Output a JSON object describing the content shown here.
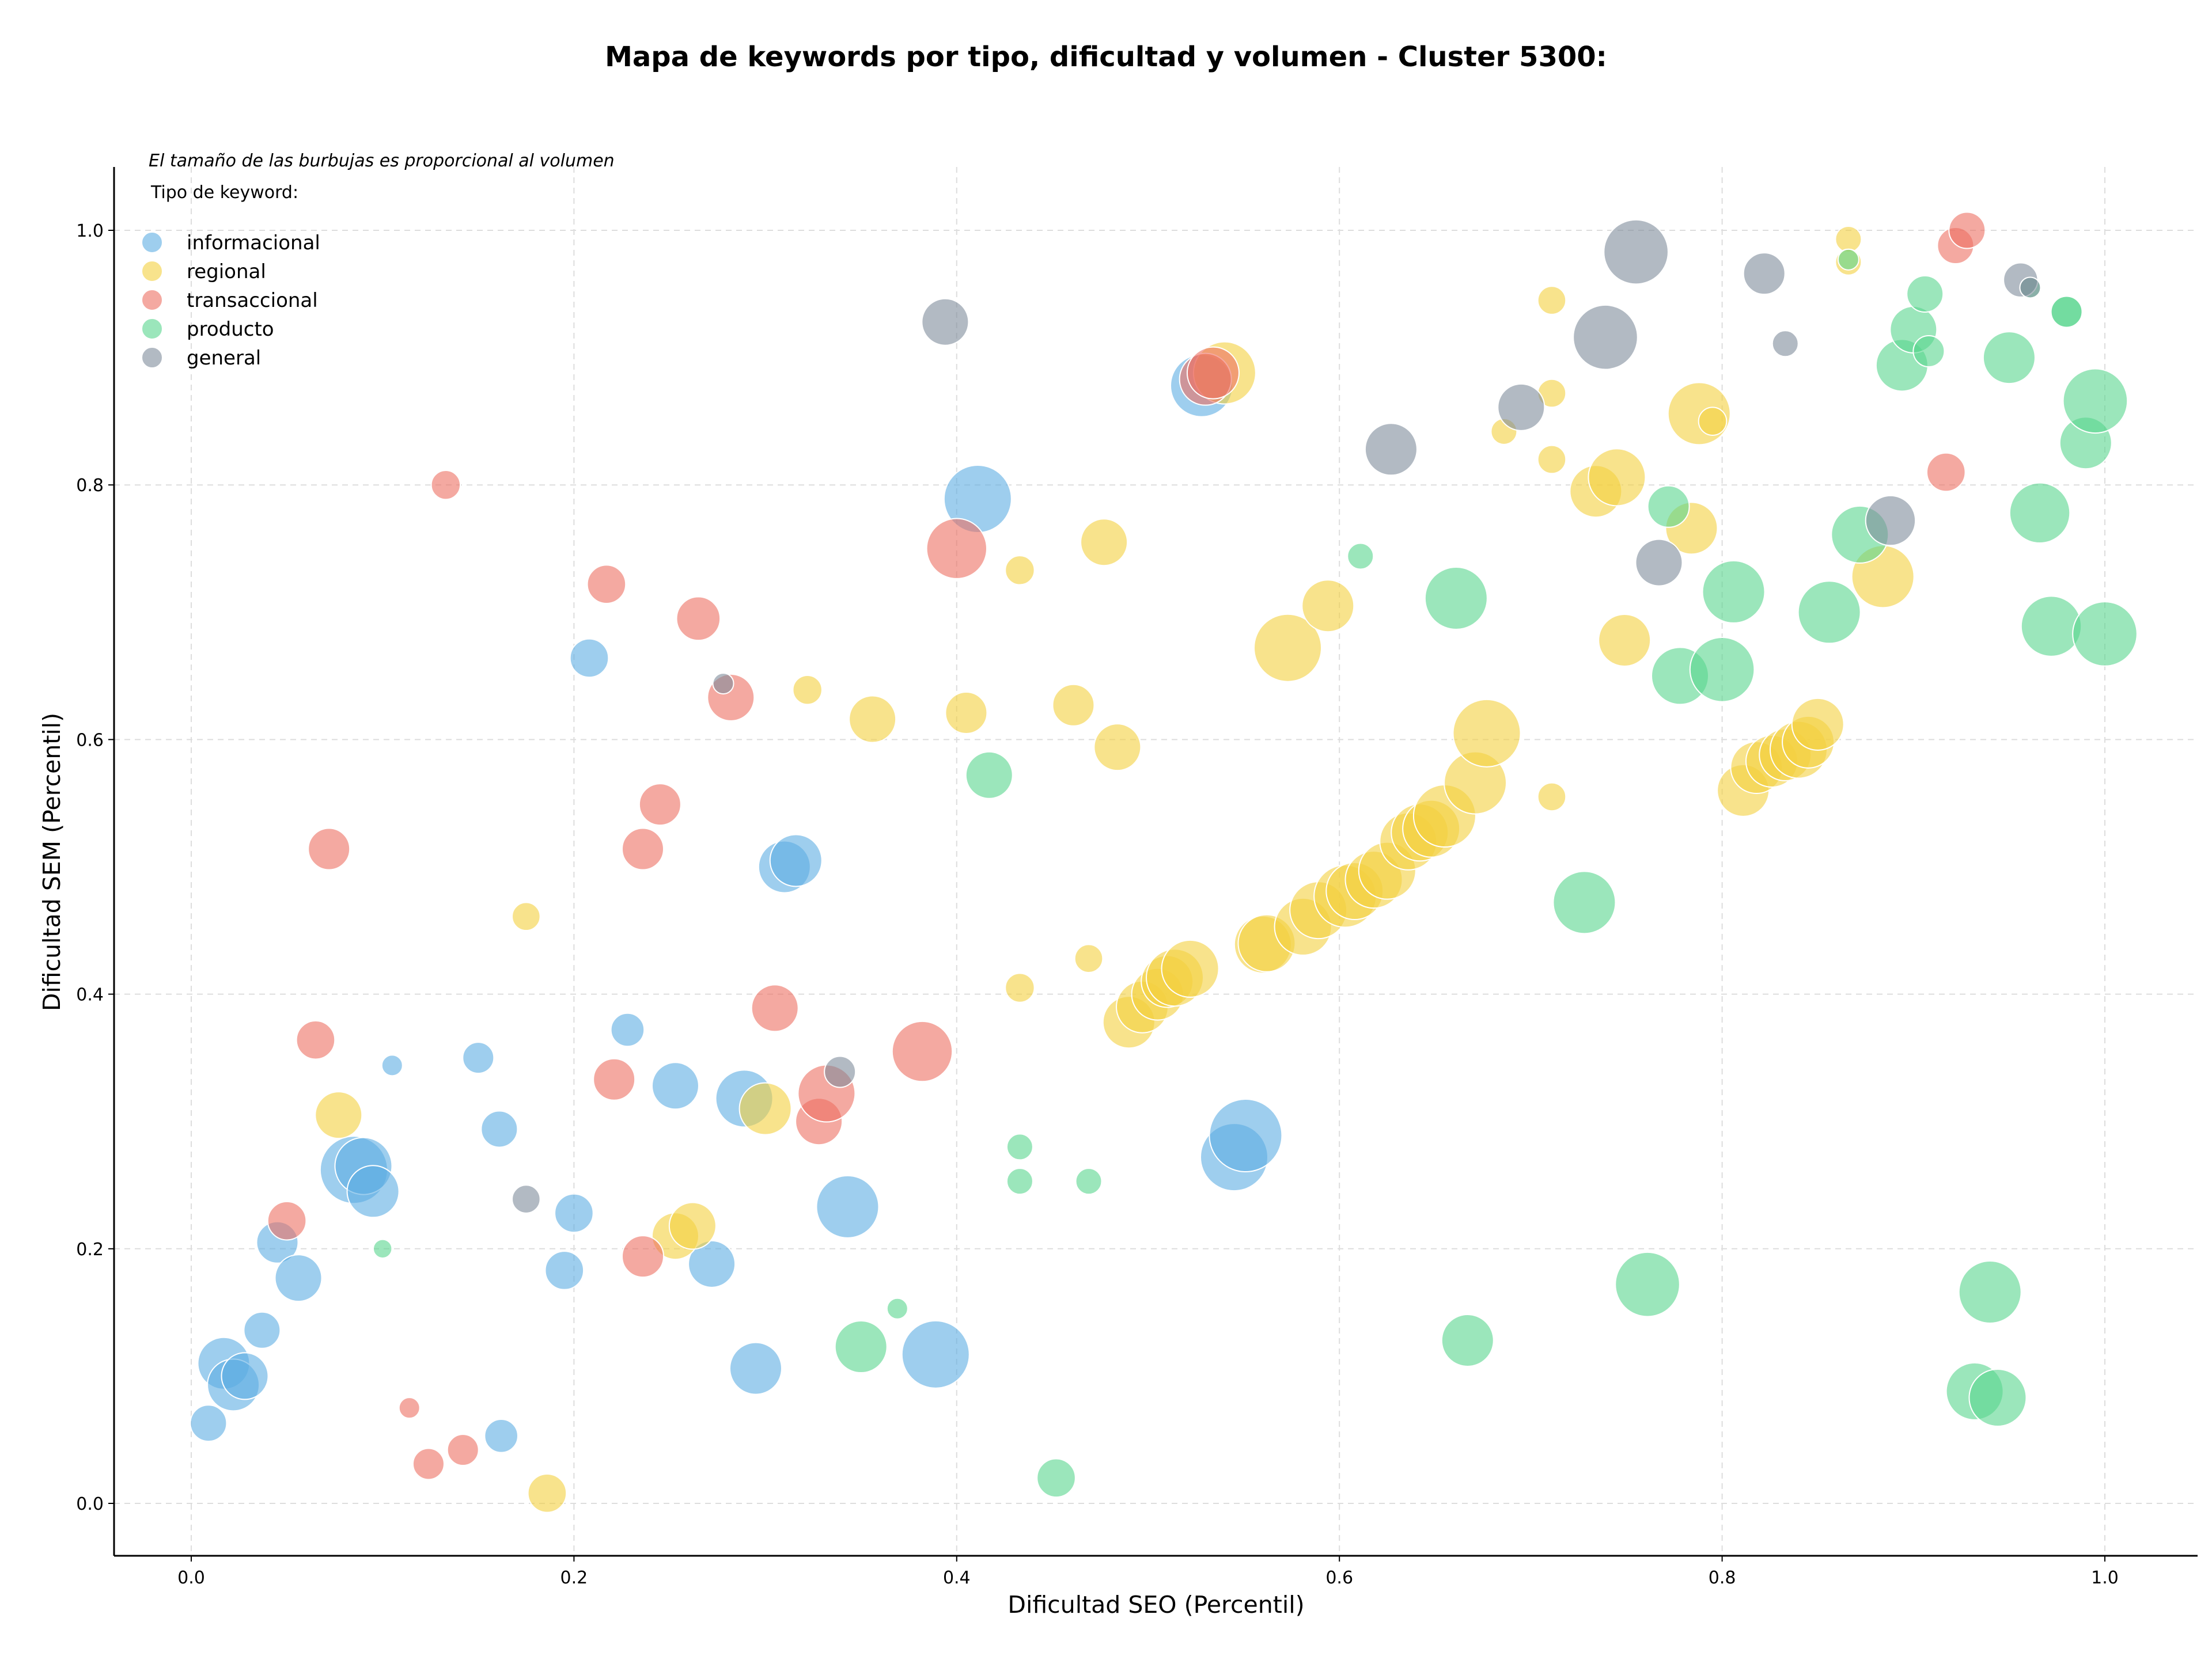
{
  "chart_data": {
    "type": "scatter",
    "title": "Mapa de keywords por tipo, dificultad y volumen - Cluster 5300:",
    "xlabel": "Dificultad SEO (Percentil)",
    "ylabel": "Dificultad SEM (Percentil)",
    "xlim": [
      -0.04,
      1.05
    ],
    "ylim": [
      -0.04,
      1.05
    ],
    "xticks": [
      0.0,
      0.2,
      0.4,
      0.6,
      0.8,
      1.0
    ],
    "yticks": [
      0.0,
      0.2,
      0.4,
      0.6,
      0.8,
      1.0
    ],
    "xtick_labels": [
      "0.0",
      "0.2",
      "0.4",
      "0.6",
      "0.8",
      "1.0"
    ],
    "ytick_labels": [
      "0.0",
      "0.2",
      "0.4",
      "0.6",
      "0.8",
      "1.0"
    ],
    "grid": true,
    "note": "El tamaño de las burbujas es proporcional al volumen",
    "legend_title": "Tipo de keyword:",
    "legend_position": "top-left",
    "series": [
      {
        "name": "informacional",
        "color": "#5DADE2",
        "points": [
          [
            0.009,
            0.063,
            0.35
          ],
          [
            0.017,
            0.11,
            0.5
          ],
          [
            0.022,
            0.093,
            0.5
          ],
          [
            0.028,
            0.1,
            0.45
          ],
          [
            0.037,
            0.136,
            0.35
          ],
          [
            0.045,
            0.205,
            0.4
          ],
          [
            0.056,
            0.177,
            0.45
          ],
          [
            0.085,
            0.262,
            0.65
          ],
          [
            0.09,
            0.265,
            0.55
          ],
          [
            0.095,
            0.245,
            0.5
          ],
          [
            0.105,
            0.344,
            0.2
          ],
          [
            0.15,
            0.35,
            0.3
          ],
          [
            0.161,
            0.294,
            0.35
          ],
          [
            0.162,
            0.053,
            0.32
          ],
          [
            0.195,
            0.183,
            0.37
          ],
          [
            0.2,
            0.228,
            0.37
          ],
          [
            0.208,
            0.664,
            0.37
          ],
          [
            0.228,
            0.372,
            0.32
          ],
          [
            0.253,
            0.328,
            0.45
          ],
          [
            0.272,
            0.188,
            0.45
          ],
          [
            0.289,
            0.318,
            0.55
          ],
          [
            0.295,
            0.106,
            0.5
          ],
          [
            0.31,
            0.5,
            0.5
          ],
          [
            0.316,
            0.505,
            0.5
          ],
          [
            0.343,
            0.233,
            0.6
          ],
          [
            0.389,
            0.117,
            0.65
          ],
          [
            0.411,
            0.789,
            0.65
          ],
          [
            0.528,
            0.878,
            0.6
          ],
          [
            0.545,
            0.272,
            0.65
          ],
          [
            0.551,
            0.289,
            0.7
          ]
        ]
      },
      {
        "name": "regional",
        "color": "#F4D03F",
        "points": [
          [
            0.077,
            0.305,
            0.45
          ],
          [
            0.175,
            0.461,
            0.27
          ],
          [
            0.186,
            0.008,
            0.37
          ],
          [
            0.253,
            0.21,
            0.45
          ],
          [
            0.262,
            0.218,
            0.45
          ],
          [
            0.3,
            0.31,
            0.5
          ],
          [
            0.322,
            0.639,
            0.28
          ],
          [
            0.356,
            0.616,
            0.45
          ],
          [
            0.405,
            0.621,
            0.4
          ],
          [
            0.433,
            0.405,
            0.28
          ],
          [
            0.433,
            0.733,
            0.28
          ],
          [
            0.461,
            0.627,
            0.4
          ],
          [
            0.469,
            0.428,
            0.27
          ],
          [
            0.477,
            0.755,
            0.45
          ],
          [
            0.484,
            0.594,
            0.45
          ],
          [
            0.49,
            0.378,
            0.5
          ],
          [
            0.497,
            0.39,
            0.5
          ],
          [
            0.505,
            0.4,
            0.5
          ],
          [
            0.51,
            0.41,
            0.5
          ],
          [
            0.514,
            0.413,
            0.55
          ],
          [
            0.522,
            0.42,
            0.55
          ],
          [
            0.54,
            0.888,
            0.6
          ],
          [
            0.56,
            0.439,
            0.55
          ],
          [
            0.562,
            0.44,
            0.55
          ],
          [
            0.573,
            0.672,
            0.65
          ],
          [
            0.581,
            0.453,
            0.55
          ],
          [
            0.589,
            0.466,
            0.55
          ],
          [
            0.594,
            0.705,
            0.5
          ],
          [
            0.603,
            0.477,
            0.6
          ],
          [
            0.608,
            0.481,
            0.55
          ],
          [
            0.618,
            0.49,
            0.55
          ],
          [
            0.625,
            0.497,
            0.55
          ],
          [
            0.636,
            0.52,
            0.55
          ],
          [
            0.642,
            0.527,
            0.55
          ],
          [
            0.648,
            0.53,
            0.55
          ],
          [
            0.655,
            0.54,
            0.6
          ],
          [
            0.671,
            0.566,
            0.6
          ],
          [
            0.677,
            0.605,
            0.65
          ],
          [
            0.686,
            0.842,
            0.25
          ],
          [
            0.711,
            0.945,
            0.27
          ],
          [
            0.711,
            0.872,
            0.27
          ],
          [
            0.711,
            0.82,
            0.27
          ],
          [
            0.711,
            0.555,
            0.27
          ],
          [
            0.734,
            0.795,
            0.5
          ],
          [
            0.745,
            0.806,
            0.55
          ],
          [
            0.749,
            0.678,
            0.5
          ],
          [
            0.788,
            0.856,
            0.6
          ],
          [
            0.795,
            0.85,
            0.27
          ],
          [
            0.784,
            0.766,
            0.5
          ],
          [
            0.811,
            0.56,
            0.5
          ],
          [
            0.818,
            0.578,
            0.5
          ],
          [
            0.826,
            0.583,
            0.5
          ],
          [
            0.833,
            0.588,
            0.5
          ],
          [
            0.84,
            0.592,
            0.55
          ],
          [
            0.845,
            0.598,
            0.5
          ],
          [
            0.85,
            0.612,
            0.5
          ],
          [
            0.866,
            0.993,
            0.25
          ],
          [
            0.866,
            0.975,
            0.25
          ],
          [
            0.884,
            0.728,
            0.6
          ]
        ]
      },
      {
        "name": "transaccional",
        "color": "#EC7063",
        "points": [
          [
            0.05,
            0.222,
            0.37
          ],
          [
            0.065,
            0.364,
            0.37
          ],
          [
            0.072,
            0.514,
            0.4
          ],
          [
            0.114,
            0.075,
            0.2
          ],
          [
            0.124,
            0.031,
            0.3
          ],
          [
            0.133,
            0.8,
            0.28
          ],
          [
            0.142,
            0.042,
            0.3
          ],
          [
            0.217,
            0.722,
            0.37
          ],
          [
            0.221,
            0.333,
            0.4
          ],
          [
            0.236,
            0.194,
            0.4
          ],
          [
            0.236,
            0.514,
            0.4
          ],
          [
            0.245,
            0.549,
            0.4
          ],
          [
            0.265,
            0.695,
            0.42
          ],
          [
            0.282,
            0.633,
            0.45
          ],
          [
            0.305,
            0.389,
            0.45
          ],
          [
            0.328,
            0.3,
            0.45
          ],
          [
            0.332,
            0.322,
            0.55
          ],
          [
            0.382,
            0.355,
            0.58
          ],
          [
            0.4,
            0.75,
            0.58
          ],
          [
            0.53,
            0.883,
            0.5
          ],
          [
            0.534,
            0.888,
            0.5
          ],
          [
            0.917,
            0.81,
            0.37
          ],
          [
            0.922,
            0.988,
            0.35
          ],
          [
            0.928,
            1.0,
            0.35
          ]
        ]
      },
      {
        "name": "producto",
        "color": "#58D68D",
        "points": [
          [
            0.1,
            0.2,
            0.18
          ],
          [
            0.35,
            0.123,
            0.5
          ],
          [
            0.369,
            0.153,
            0.2
          ],
          [
            0.417,
            0.572,
            0.45
          ],
          [
            0.433,
            0.28,
            0.25
          ],
          [
            0.433,
            0.253,
            0.25
          ],
          [
            0.452,
            0.02,
            0.37
          ],
          [
            0.469,
            0.253,
            0.25
          ],
          [
            0.611,
            0.744,
            0.25
          ],
          [
            0.661,
            0.711,
            0.6
          ],
          [
            0.667,
            0.128,
            0.5
          ],
          [
            0.728,
            0.472,
            0.6
          ],
          [
            0.761,
            0.172,
            0.62
          ],
          [
            0.772,
            0.783,
            0.4
          ],
          [
            0.778,
            0.65,
            0.55
          ],
          [
            0.8,
            0.655,
            0.62
          ],
          [
            0.806,
            0.716,
            0.6
          ],
          [
            0.856,
            0.7,
            0.6
          ],
          [
            0.866,
            0.977,
            0.2
          ],
          [
            0.872,
            0.761,
            0.55
          ],
          [
            0.894,
            0.894,
            0.5
          ],
          [
            0.9,
            0.922,
            0.45
          ],
          [
            0.906,
            0.95,
            0.35
          ],
          [
            0.908,
            0.905,
            0.3
          ],
          [
            0.932,
            0.088,
            0.55
          ],
          [
            0.94,
            0.166,
            0.6
          ],
          [
            0.944,
            0.083,
            0.55
          ],
          [
            0.95,
            0.9,
            0.5
          ],
          [
            0.961,
            0.955,
            0.2
          ],
          [
            0.966,
            0.778,
            0.58
          ],
          [
            0.972,
            0.689,
            0.58
          ],
          [
            0.98,
            0.936,
            0.3
          ],
          [
            0.98,
            0.936,
            0.3
          ],
          [
            0.99,
            0.833,
            0.5
          ],
          [
            0.995,
            0.866,
            0.62
          ],
          [
            1.0,
            0.683,
            0.62
          ]
        ]
      },
      {
        "name": "general",
        "color": "#7F8C9B",
        "points": [
          [
            0.175,
            0.239,
            0.27
          ],
          [
            0.278,
            0.644,
            0.2
          ],
          [
            0.339,
            0.339,
            0.3
          ],
          [
            0.394,
            0.928,
            0.45
          ],
          [
            0.627,
            0.828,
            0.5
          ],
          [
            0.695,
            0.861,
            0.45
          ],
          [
            0.739,
            0.916,
            0.62
          ],
          [
            0.755,
            0.983,
            0.62
          ],
          [
            0.767,
            0.739,
            0.45
          ],
          [
            0.822,
            0.966,
            0.4
          ],
          [
            0.833,
            0.911,
            0.25
          ],
          [
            0.888,
            0.772,
            0.48
          ],
          [
            0.956,
            0.961,
            0.33
          ],
          [
            0.961,
            0.955,
            0.2
          ]
        ]
      }
    ]
  }
}
